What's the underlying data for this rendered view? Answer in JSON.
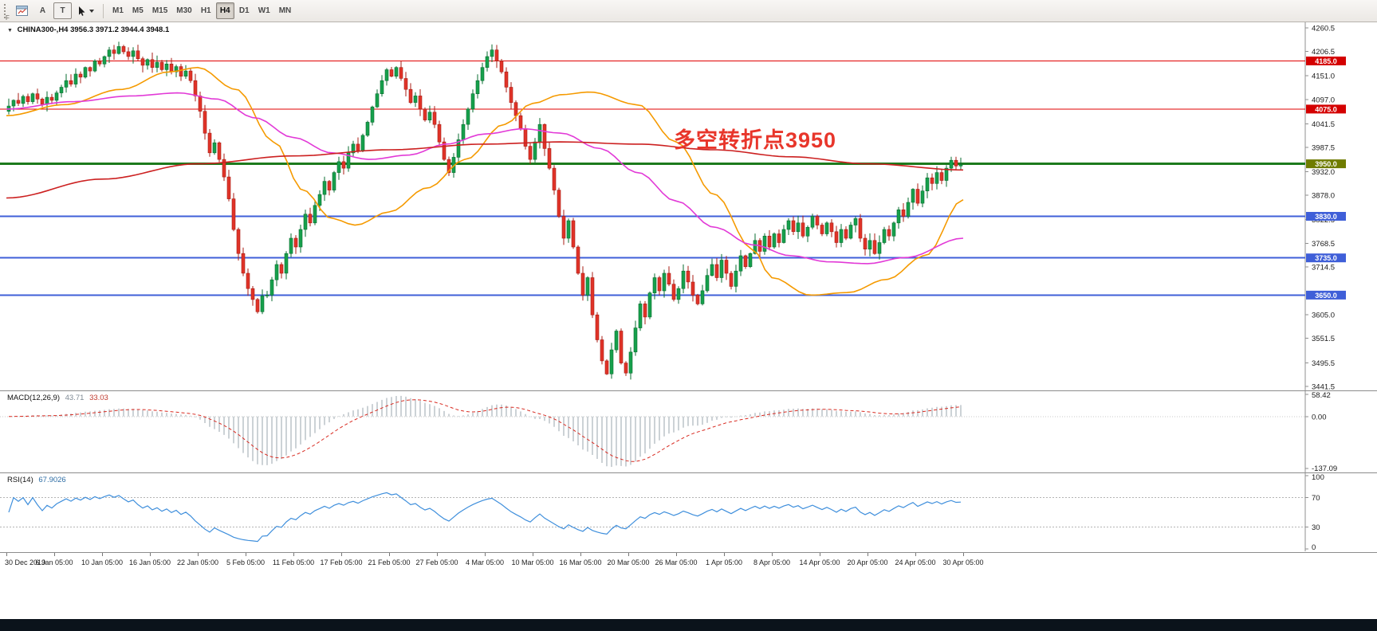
{
  "toolbar": {
    "tools": [
      {
        "name": "arrow-a-tool",
        "label": "A"
      },
      {
        "name": "text-label-tool",
        "label": "T"
      },
      {
        "name": "cursor-tool",
        "label": ""
      }
    ],
    "timeframes": [
      "M1",
      "M5",
      "M15",
      "M30",
      "H1",
      "H4",
      "D1",
      "W1",
      "MN"
    ],
    "active_timeframe": "H4",
    "corner_label": "F"
  },
  "chart": {
    "symbol_period": "CHINA300-,H4",
    "ohlc": "3956.3 3971.2 3944.4 3948.1",
    "collapse_icon": "▼",
    "annotation": {
      "text": "多空转折点3950",
      "color": "#e8362b"
    }
  },
  "macd_panel": {
    "name": "MACD(12,26,9)",
    "main_value": "43.71",
    "signal_value": "33.03",
    "axis_labels": [
      "58.42",
      "0.00",
      "-137.09"
    ]
  },
  "rsi_panel": {
    "name": "RSI(14)",
    "value": "67.9026",
    "axis_labels": [
      "100",
      "70",
      "30",
      "0"
    ]
  },
  "time_axis": {
    "labels": [
      "30 Dec 2019",
      "6 Jan 05:00",
      "10 Jan 05:00",
      "16 Jan 05:00",
      "22 Jan 05:00",
      "5 Feb 05:00",
      "11 Feb 05:00",
      "17 Feb 05:00",
      "21 Feb 05:00",
      "27 Feb 05:00",
      "4 Mar 05:00",
      "10 Mar 05:00",
      "16 Mar 05:00",
      "20 Mar 05:00",
      "26 Mar 05:00",
      "1 Apr 05:00",
      "8 Apr 05:00",
      "14 Apr 05:00",
      "20 Apr 05:00",
      "24 Apr 05:00",
      "30 Apr 05:00"
    ]
  },
  "chart_data": {
    "type": "candlestick",
    "symbol": "CHINA300-",
    "timeframe": "H4",
    "price_range": [
      3441.5,
      4260.5
    ],
    "price_ticks": [
      4260.5,
      4206.5,
      4151.0,
      4097.0,
      4041.5,
      3987.5,
      3932.0,
      3878.0,
      3822.5,
      3768.5,
      3714.5,
      3605.0,
      3551.5,
      3495.5,
      3441.5
    ],
    "closes": [
      4082,
      4095,
      4088,
      4104,
      4092,
      4110,
      4098,
      4086,
      4102,
      4095,
      4112,
      4125,
      4140,
      4132,
      4155,
      4148,
      4170,
      4162,
      4185,
      4178,
      4195,
      4210,
      4202,
      4218,
      4206,
      4195,
      4208,
      4190,
      4175,
      4188,
      4170,
      4182,
      4165,
      4178,
      4160,
      4172,
      4150,
      4162,
      4140,
      4105,
      4070,
      4020,
      3975,
      3998,
      3960,
      3920,
      3870,
      3800,
      3745,
      3700,
      3665,
      3640,
      3612,
      3648,
      3650,
      3685,
      3720,
      3700,
      3745,
      3780,
      3760,
      3800,
      3835,
      3815,
      3855,
      3880,
      3910,
      3890,
      3930,
      3955,
      3940,
      3975,
      3995,
      3980,
      4015,
      4045,
      4080,
      4110,
      4140,
      4165,
      4150,
      4170,
      4145,
      4120,
      4090,
      4105,
      4075,
      4050,
      4068,
      4040,
      4000,
      3960,
      3930,
      3965,
      4005,
      4040,
      4075,
      4110,
      4140,
      4170,
      4195,
      4210,
      4185,
      4160,
      4125,
      4090,
      4060,
      4030,
      3990,
      3960,
      4000,
      4040,
      3985,
      3940,
      3890,
      3830,
      3780,
      3820,
      3760,
      3700,
      3650,
      3690,
      3605,
      3548,
      3500,
      3470,
      3525,
      3568,
      3495,
      3472,
      3520,
      3575,
      3630,
      3600,
      3655,
      3690,
      3660,
      3700,
      3675,
      3640,
      3665,
      3705,
      3680,
      3650,
      3630,
      3660,
      3695,
      3720,
      3690,
      3730,
      3700,
      3670,
      3705,
      3740,
      3715,
      3745,
      3775,
      3750,
      3785,
      3760,
      3790,
      3770,
      3800,
      3820,
      3795,
      3815,
      3785,
      3805,
      3830,
      3810,
      3790,
      3815,
      3795,
      3770,
      3800,
      3780,
      3810,
      3825,
      3780,
      3755,
      3775,
      3745,
      3770,
      3800,
      3785,
      3815,
      3845,
      3830,
      3862,
      3892,
      3860,
      3888,
      3918,
      3905,
      3930,
      3912,
      3940,
      3958,
      3945,
      3948.1
    ],
    "up_color": "#16a04c",
    "up_edge": "#0a6e30",
    "down_color": "#e03328",
    "down_edge": "#a81d14",
    "levels": [
      {
        "price": 4185.0,
        "label": "4185.0",
        "line_color": "#e00000",
        "badge_color": "#d40000",
        "width": 1
      },
      {
        "price": 4075.0,
        "label": "4075.0",
        "line_color": "#e00000",
        "badge_color": "#d40000",
        "width": 1
      },
      {
        "price": 3950.0,
        "label": "3950.0",
        "line_color": "#1d7a1d",
        "badge_color": "#6f7c00",
        "width": 3
      },
      {
        "price": 3830.0,
        "label": "3830.0",
        "line_color": "#3f5fd8",
        "badge_color": "#3f5fd8",
        "width": 2
      },
      {
        "price": 3735.0,
        "label": "3735.0",
        "line_color": "#3f5fd8",
        "badge_color": "#3f5fd8",
        "width": 2
      },
      {
        "price": 3650.0,
        "label": "3650.0",
        "line_color": "#3f5fd8",
        "badge_color": "#3f5fd8",
        "width": 2
      }
    ],
    "moving_averages": [
      {
        "name": "ma-orange",
        "color": "#f59a00",
        "points": [
          [
            0,
            4060
          ],
          [
            0.06,
            4085
          ],
          [
            0.12,
            4120
          ],
          [
            0.17,
            4160
          ],
          [
            0.2,
            4170
          ],
          [
            0.24,
            4120
          ],
          [
            0.28,
            4000
          ],
          [
            0.31,
            3890
          ],
          [
            0.34,
            3825
          ],
          [
            0.365,
            3810
          ],
          [
            0.4,
            3840
          ],
          [
            0.44,
            3895
          ],
          [
            0.48,
            3960
          ],
          [
            0.52,
            4040
          ],
          [
            0.55,
            4088
          ],
          [
            0.58,
            4108
          ],
          [
            0.61,
            4114
          ],
          [
            0.66,
            4085
          ],
          [
            0.7,
            4000
          ],
          [
            0.74,
            3880
          ],
          [
            0.78,
            3755
          ],
          [
            0.8,
            3690
          ],
          [
            0.84,
            3650
          ],
          [
            0.88,
            3656
          ],
          [
            0.92,
            3686
          ],
          [
            0.96,
            3740
          ],
          [
            1,
            3868
          ]
        ]
      },
      {
        "name": "ma-magenta",
        "color": "#e23ad7",
        "points": [
          [
            0,
            4075
          ],
          [
            0.07,
            4092
          ],
          [
            0.13,
            4105
          ],
          [
            0.18,
            4112
          ],
          [
            0.22,
            4098
          ],
          [
            0.26,
            4055
          ],
          [
            0.3,
            4010
          ],
          [
            0.34,
            3975
          ],
          [
            0.38,
            3960
          ],
          [
            0.42,
            3970
          ],
          [
            0.46,
            3995
          ],
          [
            0.5,
            4018
          ],
          [
            0.54,
            4030
          ],
          [
            0.58,
            4020
          ],
          [
            0.62,
            3985
          ],
          [
            0.66,
            3930
          ],
          [
            0.7,
            3865
          ],
          [
            0.74,
            3805
          ],
          [
            0.78,
            3765
          ],
          [
            0.82,
            3740
          ],
          [
            0.86,
            3726
          ],
          [
            0.9,
            3722
          ],
          [
            0.94,
            3736
          ],
          [
            1,
            3780
          ]
        ]
      },
      {
        "name": "ma-red",
        "color": "#cc2020",
        "points": [
          [
            0,
            3872
          ],
          [
            0.1,
            3915
          ],
          [
            0.2,
            3950
          ],
          [
            0.3,
            3968
          ],
          [
            0.4,
            3982
          ],
          [
            0.5,
            3995
          ],
          [
            0.58,
            4000
          ],
          [
            0.66,
            3995
          ],
          [
            0.74,
            3982
          ],
          [
            0.82,
            3966
          ],
          [
            0.9,
            3950
          ],
          [
            1,
            3936
          ]
        ]
      }
    ],
    "macd": {
      "fast": 12,
      "slow": 26,
      "signal": 9,
      "range": [
        -137.09,
        58.42
      ],
      "histogram_color": "#9aa4ae",
      "signal_color": "#d82a20"
    },
    "rsi": {
      "period": 14,
      "levels": [
        70,
        30
      ],
      "range": [
        0,
        100
      ],
      "line_color": "#3f8fdc",
      "level_color": "#b4b4b4"
    }
  }
}
